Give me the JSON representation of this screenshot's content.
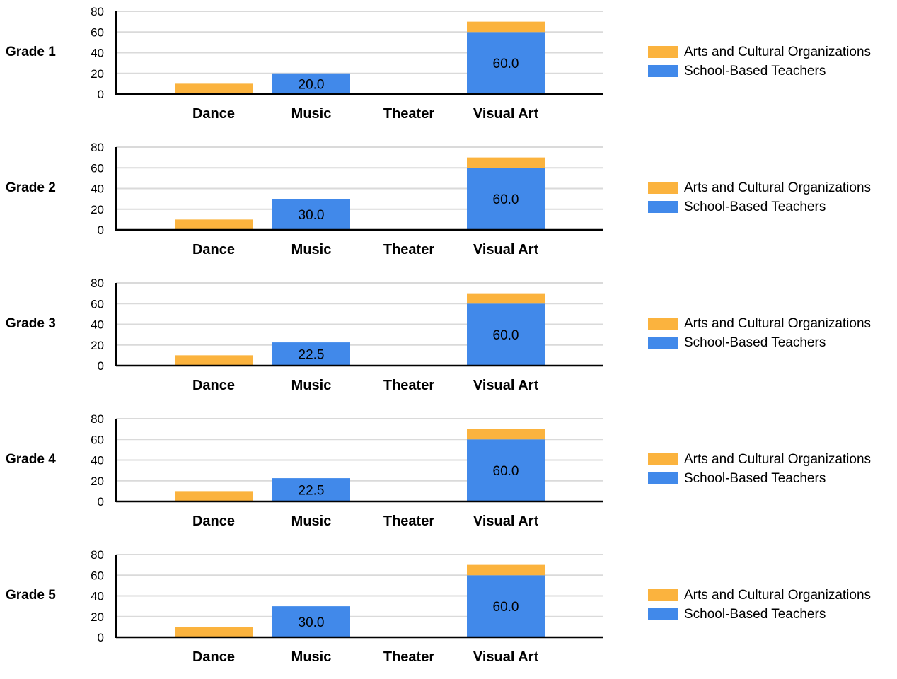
{
  "colors": {
    "arts_and_cultural_organizations": "#FBB33E",
    "school_based_teachers": "#4189EA",
    "gridline": "#DADADA",
    "axis": "#000000"
  },
  "chart_data": [
    {
      "type": "bar",
      "stacked": true,
      "title": "Grade 1",
      "categories": [
        "Dance",
        "Music",
        "Theater",
        "Visual Art"
      ],
      "ylim": [
        0,
        80
      ],
      "yticks": [
        0,
        20,
        40,
        60,
        80
      ],
      "grid": true,
      "legend_position": "right",
      "series": [
        {
          "name": "School-Based Teachers",
          "values": [
            0,
            20,
            0,
            60
          ],
          "labels": [
            "",
            "20.0",
            "",
            "60.0"
          ]
        },
        {
          "name": "Arts and Cultural Organizations",
          "values": [
            10,
            0,
            0,
            10
          ],
          "labels": [
            "",
            "",
            "",
            ""
          ]
        }
      ]
    },
    {
      "type": "bar",
      "stacked": true,
      "title": "Grade 2",
      "categories": [
        "Dance",
        "Music",
        "Theater",
        "Visual Art"
      ],
      "ylim": [
        0,
        80
      ],
      "yticks": [
        0,
        20,
        40,
        60,
        80
      ],
      "grid": true,
      "legend_position": "right",
      "series": [
        {
          "name": "School-Based Teachers",
          "values": [
            0,
            30,
            0,
            60
          ],
          "labels": [
            "",
            "30.0",
            "",
            "60.0"
          ]
        },
        {
          "name": "Arts and Cultural Organizations",
          "values": [
            10,
            0,
            0,
            10
          ],
          "labels": [
            "",
            "",
            "",
            ""
          ]
        }
      ]
    },
    {
      "type": "bar",
      "stacked": true,
      "title": "Grade 3",
      "categories": [
        "Dance",
        "Music",
        "Theater",
        "Visual Art"
      ],
      "ylim": [
        0,
        80
      ],
      "yticks": [
        0,
        20,
        40,
        60,
        80
      ],
      "grid": true,
      "legend_position": "right",
      "series": [
        {
          "name": "School-Based Teachers",
          "values": [
            0,
            22.5,
            0,
            60
          ],
          "labels": [
            "",
            "22.5",
            "",
            "60.0"
          ]
        },
        {
          "name": "Arts and Cultural Organizations",
          "values": [
            10,
            0,
            0,
            10
          ],
          "labels": [
            "",
            "",
            "",
            ""
          ]
        }
      ]
    },
    {
      "type": "bar",
      "stacked": true,
      "title": "Grade 4",
      "categories": [
        "Dance",
        "Music",
        "Theater",
        "Visual Art"
      ],
      "ylim": [
        0,
        80
      ],
      "yticks": [
        0,
        20,
        40,
        60,
        80
      ],
      "grid": true,
      "legend_position": "right",
      "series": [
        {
          "name": "School-Based Teachers",
          "values": [
            0,
            22.5,
            0,
            60
          ],
          "labels": [
            "",
            "22.5",
            "",
            "60.0"
          ]
        },
        {
          "name": "Arts and Cultural Organizations",
          "values": [
            10,
            0,
            0,
            10
          ],
          "labels": [
            "",
            "",
            "",
            ""
          ]
        }
      ]
    },
    {
      "type": "bar",
      "stacked": true,
      "title": "Grade 5",
      "categories": [
        "Dance",
        "Music",
        "Theater",
        "Visual Art"
      ],
      "ylim": [
        0,
        80
      ],
      "yticks": [
        0,
        20,
        40,
        60,
        80
      ],
      "grid": true,
      "legend_position": "right",
      "series": [
        {
          "name": "School-Based Teachers",
          "values": [
            0,
            30,
            0,
            60
          ],
          "labels": [
            "",
            "30.0",
            "",
            "60.0"
          ]
        },
        {
          "name": "Arts and Cultural Organizations",
          "values": [
            10,
            0,
            0,
            10
          ],
          "labels": [
            "",
            "",
            "",
            ""
          ]
        }
      ]
    }
  ]
}
